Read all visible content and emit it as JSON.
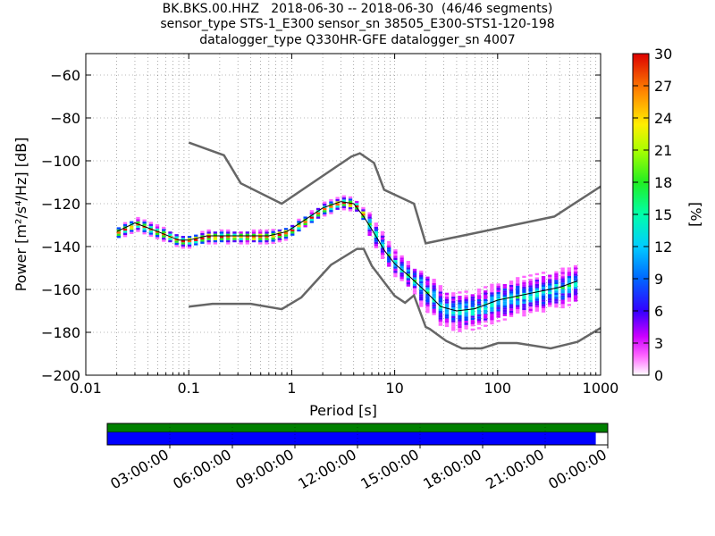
{
  "title": {
    "line1": "BK.BKS.00.HHZ   2018-06-30 -- 2018-06-30  (46/46 segments)",
    "line2": "sensor_type STS-1_E300 sensor_sn 38505_E300-STS1-120-198",
    "line3": "datalogger_type Q330HR-GFE datalogger_sn 4007"
  },
  "chart_data": {
    "type": "heatmap",
    "title": "BK.BKS.00.HHZ   2018-06-30 -- 2018-06-30  (46/46 segments)",
    "xlabel": "Period [s]",
    "ylabel": "Power [m²/s⁴/Hz] [dB]",
    "x_scale": "log",
    "xlim": [
      0.01,
      1000
    ],
    "ylim": [
      -200,
      -50
    ],
    "x_ticks": [
      "0.01",
      "0.1",
      "1",
      "10",
      "100",
      "1000"
    ],
    "x_tick_values": [
      0.01,
      0.1,
      1,
      10,
      100,
      1000
    ],
    "y_ticks": [
      "−200",
      "−180",
      "−160",
      "−140",
      "−120",
      "−100",
      "−80",
      "−60"
    ],
    "y_tick_values": [
      -200,
      -180,
      -160,
      -140,
      -120,
      -100,
      -80,
      -60
    ],
    "grid": true,
    "colorbar": {
      "label": "[%]",
      "range": [
        0,
        30
      ],
      "ticks": [
        "0",
        "3",
        "6",
        "9",
        "12",
        "15",
        "18",
        "21",
        "24",
        "27",
        "30"
      ],
      "tick_values": [
        0,
        3,
        6,
        9,
        12,
        15,
        18,
        21,
        24,
        27,
        30
      ]
    },
    "series": [
      {
        "name": "high noise model",
        "color": "#666666",
        "points": [
          [
            0.1,
            -91.5
          ],
          [
            0.22,
            -97.4
          ],
          [
            0.32,
            -110.5
          ],
          [
            0.8,
            -120
          ],
          [
            3.8,
            -98
          ],
          [
            4.6,
            -96.5
          ],
          [
            6.3,
            -101
          ],
          [
            7.9,
            -113.5
          ],
          [
            15.4,
            -120
          ],
          [
            20,
            -138.5
          ],
          [
            354.8,
            -126
          ],
          [
            1000,
            -112
          ]
        ]
      },
      {
        "name": "low noise model",
        "color": "#666666",
        "points": [
          [
            0.1,
            -168
          ],
          [
            0.17,
            -166.7
          ],
          [
            0.4,
            -166.7
          ],
          [
            0.8,
            -169.2
          ],
          [
            1.24,
            -163.7
          ],
          [
            2.4,
            -148.6
          ],
          [
            4.3,
            -141.1
          ],
          [
            5,
            -141.1
          ],
          [
            6,
            -149
          ],
          [
            10,
            -163
          ],
          [
            12.6,
            -166.2
          ],
          [
            15.4,
            -162.8
          ],
          [
            20,
            -177.5
          ],
          [
            21.9,
            -178.4
          ],
          [
            31.6,
            -184
          ],
          [
            45,
            -187.5
          ],
          [
            70,
            -187.5
          ],
          [
            101,
            -185
          ],
          [
            154,
            -185
          ],
          [
            328,
            -187.5
          ],
          [
            600,
            -184.4
          ],
          [
            1000,
            -178
          ]
        ]
      },
      {
        "name": "mean",
        "color": "#000000",
        "points": [
          [
            0.02,
            -133
          ],
          [
            0.03,
            -129
          ],
          [
            0.05,
            -133
          ],
          [
            0.08,
            -137
          ],
          [
            0.1,
            -137
          ],
          [
            0.15,
            -135
          ],
          [
            0.3,
            -135
          ],
          [
            0.6,
            -135
          ],
          [
            0.9,
            -133
          ],
          [
            1.3,
            -128
          ],
          [
            2,
            -122
          ],
          [
            3,
            -119
          ],
          [
            4,
            -120
          ],
          [
            5,
            -126
          ],
          [
            6,
            -132
          ],
          [
            8,
            -142
          ],
          [
            10,
            -148
          ],
          [
            14,
            -154
          ],
          [
            20,
            -161
          ],
          [
            28,
            -168
          ],
          [
            40,
            -170
          ],
          [
            60,
            -169
          ],
          [
            100,
            -165
          ],
          [
            200,
            -162
          ],
          [
            400,
            -159
          ],
          [
            600,
            -156
          ]
        ]
      }
    ]
  },
  "timeline": {
    "labels": [
      "03:00:00",
      "06:00:00",
      "09:00:00",
      "12:00:00",
      "15:00:00",
      "18:00:00",
      "21:00:00",
      "00:00:00"
    ],
    "top_bar_color": "#008000",
    "bottom_bar_color": "#0000ff",
    "coverage_fraction": 0.976
  }
}
